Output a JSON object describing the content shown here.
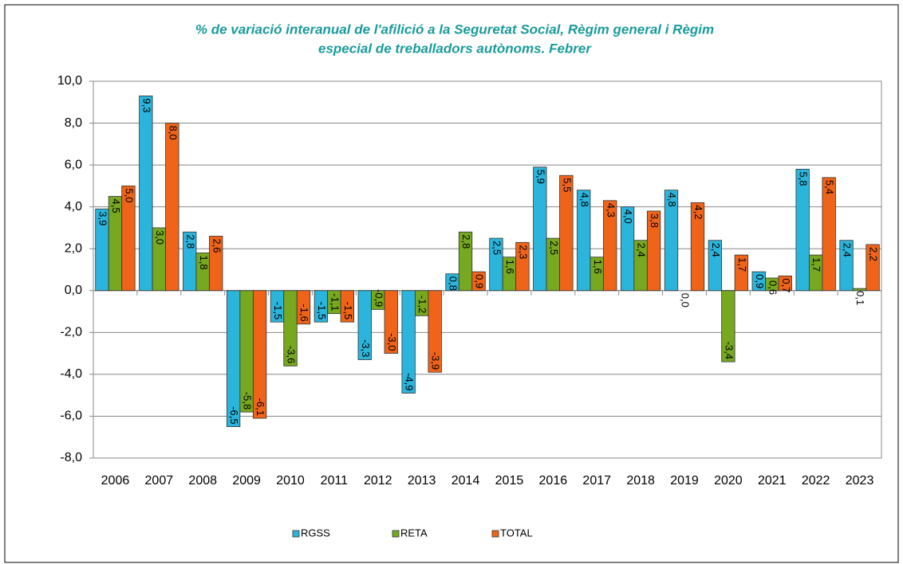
{
  "chart_data": {
    "type": "bar",
    "title": [
      "% de variació interanual de l'afilició a la Seguretat Social, Règim general i Règim",
      "especial de treballadors autònoms. Febrer"
    ],
    "categories": [
      "2006",
      "2007",
      "2008",
      "2009",
      "2010",
      "2011",
      "2012",
      "2013",
      "2014",
      "2015",
      "2016",
      "2017",
      "2018",
      "2019",
      "2020",
      "2021",
      "2022",
      "2023"
    ],
    "series": [
      {
        "name": "RGSS",
        "color": "#2bb5dc",
        "values": [
          3.9,
          9.3,
          2.8,
          -6.5,
          -1.5,
          -1.5,
          -3.3,
          -4.9,
          0.8,
          2.5,
          5.9,
          4.8,
          4.0,
          4.8,
          2.4,
          0.9,
          5.8,
          2.4
        ],
        "value_labels": [
          "3,9",
          "9,3",
          "2,8",
          "-6,5",
          "-1,5",
          "-1,5",
          "-3,3",
          "-4,9",
          "0,8",
          "2,5",
          "5,9",
          "4,8",
          "4,0",
          "4,8",
          "2,4",
          "0,9",
          "5,8",
          "2,4"
        ]
      },
      {
        "name": "RETA",
        "color": "#76a820",
        "values": [
          4.5,
          3.0,
          1.8,
          -5.8,
          -3.6,
          -1.1,
          -0.9,
          -1.2,
          2.8,
          1.6,
          2.5,
          1.6,
          2.4,
          0.0,
          -3.4,
          0.6,
          1.7,
          0.1
        ],
        "value_labels": [
          "4,5",
          "3,0",
          "1,8",
          "-5,8",
          "-3,6",
          "-1,1",
          "-0,9",
          "-1,2",
          "2,8",
          "1,6",
          "2,5",
          "1,6",
          "2,4",
          "0,0",
          "-3,4",
          "0,6",
          "1,7",
          "0,1"
        ]
      },
      {
        "name": "TOTAL",
        "color": "#f0641a",
        "values": [
          5.0,
          8.0,
          2.6,
          -6.1,
          -1.6,
          -1.5,
          -3.0,
          -3.9,
          0.9,
          2.3,
          5.5,
          4.3,
          3.8,
          4.2,
          1.7,
          0.7,
          5.4,
          2.2
        ],
        "value_labels": [
          "5,0",
          "8,0",
          "2,6",
          "-6,1",
          "-1,6",
          "-1,5",
          "-3,0",
          "-3,9",
          "0,9",
          "2,3",
          "5,5",
          "4,3",
          "3,8",
          "4,2",
          "1,7",
          "0,7",
          "5,4",
          "2,2"
        ]
      }
    ],
    "ylim": [
      -8,
      10
    ],
    "yticks": [
      {
        "value": -8,
        "label": "-8,0"
      },
      {
        "value": -6,
        "label": "-6,0"
      },
      {
        "value": -4,
        "label": "-4,0"
      },
      {
        "value": -2,
        "label": "-2,0"
      },
      {
        "value": 0,
        "label": "0,0"
      },
      {
        "value": 2,
        "label": "2,0"
      },
      {
        "value": 4,
        "label": "4,0"
      },
      {
        "value": 6,
        "label": "6,0"
      },
      {
        "value": 8,
        "label": "8,0"
      },
      {
        "value": 10,
        "label": "10,0"
      }
    ],
    "grid": true,
    "legend": "bottom"
  }
}
